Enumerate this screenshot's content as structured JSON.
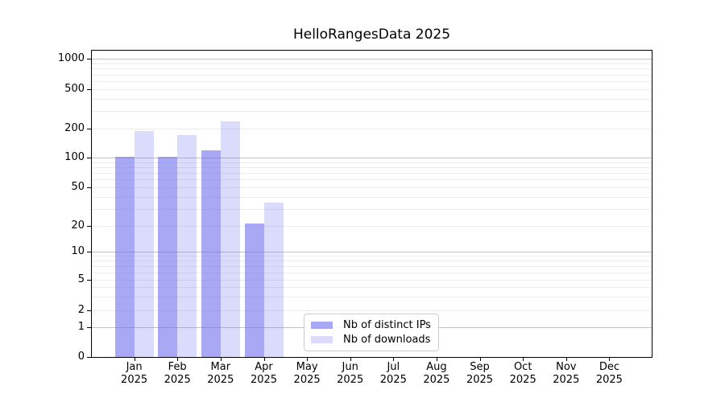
{
  "figure": {
    "background": "#ffffff"
  },
  "chart_data": {
    "type": "bar",
    "title": "HelloRangesData 2025",
    "scale": "symlog",
    "grid": true,
    "legend_position": "lower center",
    "xlabel": "",
    "ylabel": "",
    "ylim": [
      0,
      1250
    ],
    "categories": [
      "Jan",
      "Feb",
      "Mar",
      "Apr",
      "May",
      "Jun",
      "Jul",
      "Aug",
      "Sep",
      "Oct",
      "Nov",
      "Dec"
    ],
    "x_year_label": "2025",
    "y_ticks": [
      0,
      1,
      2,
      5,
      10,
      20,
      50,
      100,
      200,
      500,
      1000
    ],
    "series": [
      {
        "name": "Nb of distinct IPs",
        "color": "rgba(102,102,238,0.57)",
        "values": [
          103,
          103,
          120,
          21,
          0,
          0,
          0,
          0,
          0,
          0,
          0,
          0
        ]
      },
      {
        "name": "Nb of downloads",
        "color": "rgba(102,102,238,0.235)",
        "values": [
          189,
          171,
          237,
          35,
          0,
          0,
          0,
          0,
          0,
          0,
          0,
          0
        ]
      }
    ],
    "colors": {
      "major_grid": "#c3c3c3",
      "minor_grid": "#ececec",
      "spine": "#000000",
      "text": "#000000"
    }
  }
}
